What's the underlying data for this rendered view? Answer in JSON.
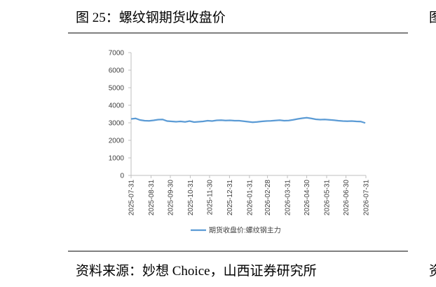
{
  "header": {
    "title": "图 25：螺纹钢期货收盘价",
    "cut_title": "图"
  },
  "chart_data": {
    "type": "line",
    "x": [
      "2025-07-31",
      "2025-08-07",
      "2025-08-14",
      "2025-08-21",
      "2025-08-28",
      "2025-09-04",
      "2025-09-11",
      "2025-09-18",
      "2025-09-25",
      "2025-10-02",
      "2025-10-09",
      "2025-10-16",
      "2025-10-23",
      "2025-10-30",
      "2025-11-06",
      "2025-11-13",
      "2025-11-20",
      "2025-11-27",
      "2025-12-04",
      "2025-12-11",
      "2025-12-18",
      "2025-12-25",
      "2026-01-01",
      "2026-01-08",
      "2026-01-15",
      "2026-01-22",
      "2026-01-29",
      "2026-02-05",
      "2026-02-12",
      "2026-02-19",
      "2026-02-26",
      "2026-03-05",
      "2026-03-12",
      "2026-03-19",
      "2026-03-26",
      "2026-04-02",
      "2026-04-09",
      "2026-04-16",
      "2026-04-23",
      "2026-04-30",
      "2026-05-07",
      "2026-05-14",
      "2026-05-21",
      "2026-05-28",
      "2026-06-04",
      "2026-06-11",
      "2026-06-18",
      "2026-06-25",
      "2026-07-02",
      "2026-07-09",
      "2026-07-16",
      "2026-07-23",
      "2026-07-30"
    ],
    "series": [
      {
        "name": "期货收盘价:螺纹钢主力",
        "color": "#5b9bd5",
        "values": [
          3220,
          3250,
          3160,
          3120,
          3110,
          3140,
          3180,
          3190,
          3100,
          3080,
          3060,
          3080,
          3050,
          3100,
          3040,
          3060,
          3080,
          3120,
          3100,
          3140,
          3150,
          3130,
          3140,
          3120,
          3120,
          3090,
          3060,
          3030,
          3050,
          3080,
          3100,
          3110,
          3130,
          3150,
          3120,
          3130,
          3170,
          3220,
          3260,
          3290,
          3250,
          3200,
          3180,
          3190,
          3170,
          3150,
          3120,
          3100,
          3090,
          3100,
          3080,
          3070,
          2990
        ]
      }
    ],
    "xlim": [
      "2025-07-31",
      "2026-07-31"
    ],
    "xticks": [
      "2025-07-31",
      "2025-08-31",
      "2025-09-30",
      "2025-10-31",
      "2025-11-30",
      "2025-12-31",
      "2026-01-31",
      "2026-02-28",
      "2026-03-31",
      "2026-04-30",
      "2026-05-31",
      "2026-06-30",
      "2026-07-31"
    ],
    "ylim": [
      0,
      7000
    ],
    "yticks": [
      0,
      1000,
      2000,
      3000,
      4000,
      5000,
      6000,
      7000
    ],
    "grid": false,
    "legend": "bottom"
  },
  "footer": {
    "source": "资料来源：妙想 Choice，山西证券研究所",
    "cut_source": "资"
  }
}
